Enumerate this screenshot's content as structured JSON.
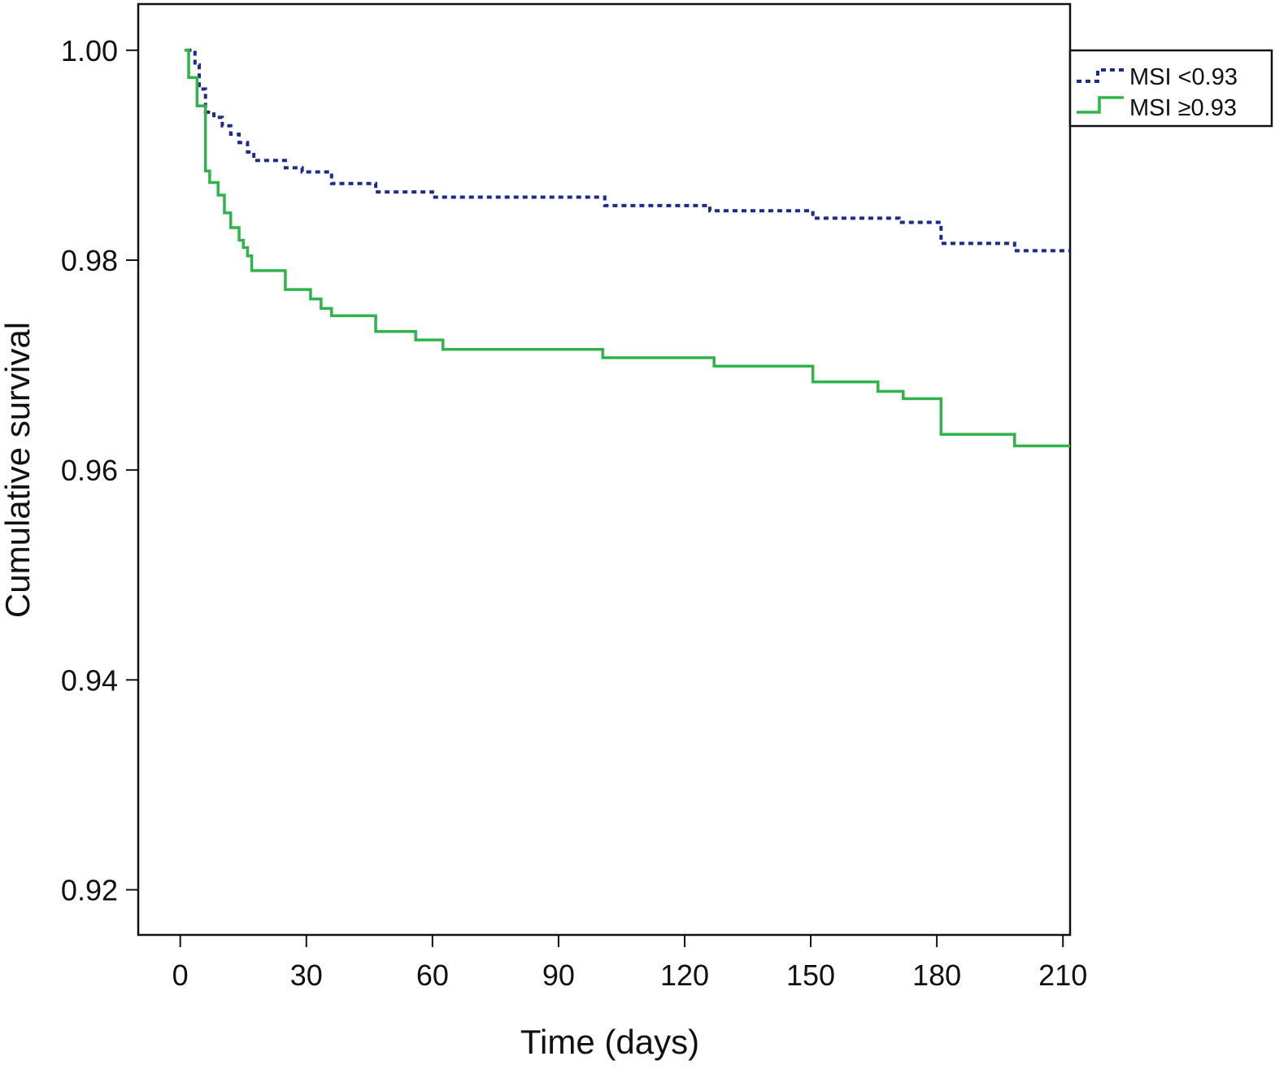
{
  "chart_data": {
    "type": "line",
    "subtype": "kaplan-meier-step",
    "title": "",
    "xlabel": "Time (days)",
    "ylabel": "Cumulative survival",
    "xlim": [
      -10,
      211.7
    ],
    "ylim": [
      0.9157,
      1.0044
    ],
    "xticks": [
      0,
      30,
      60,
      90,
      120,
      150,
      180,
      210
    ],
    "xtick_labels": [
      "0",
      "30",
      "60",
      "90",
      "120",
      "150",
      "180",
      "210"
    ],
    "yticks": [
      1.0,
      0.98,
      0.96,
      0.94,
      0.92
    ],
    "ytick_labels": [
      "1.00",
      "0.98",
      "0.96",
      "0.94",
      "0.92"
    ],
    "grid": false,
    "legend_position": "top-right",
    "series": [
      {
        "name": "MSI <0.93",
        "color": "#1c2a8c",
        "style": "dashed",
        "x": [
          1.5,
          3.5,
          4.5,
          6,
          8,
          10,
          12,
          14,
          16,
          17.5,
          25,
          29,
          36,
          46.5,
          60,
          101,
          126,
          150.5,
          171,
          181,
          198.5,
          211.7
        ],
        "y": [
          1.0,
          0.9986,
          0.9963,
          0.9941,
          0.9936,
          0.9928,
          0.992,
          0.9912,
          0.9903,
          0.9895,
          0.9888,
          0.9884,
          0.9873,
          0.9865,
          0.986,
          0.9852,
          0.9847,
          0.984,
          0.9836,
          0.9816,
          0.9809,
          0.9809
        ]
      },
      {
        "name": "MSI ≥0.93",
        "color": "#2fb34a",
        "style": "solid",
        "x": [
          1,
          2,
          4,
          6,
          7,
          9,
          10.5,
          12,
          14,
          15,
          16,
          17,
          25,
          31,
          33.5,
          36,
          46.5,
          56,
          62.5,
          100.5,
          127,
          150.5,
          166,
          172,
          181,
          198.5,
          211.7
        ],
        "y": [
          1.0,
          0.9974,
          0.9947,
          0.9885,
          0.9874,
          0.9862,
          0.9845,
          0.9831,
          0.9819,
          0.9812,
          0.9804,
          0.979,
          0.9772,
          0.9763,
          0.9754,
          0.9747,
          0.9732,
          0.9724,
          0.9715,
          0.9707,
          0.9699,
          0.9684,
          0.9675,
          0.9668,
          0.9634,
          0.9623,
          0.9623
        ]
      }
    ]
  }
}
